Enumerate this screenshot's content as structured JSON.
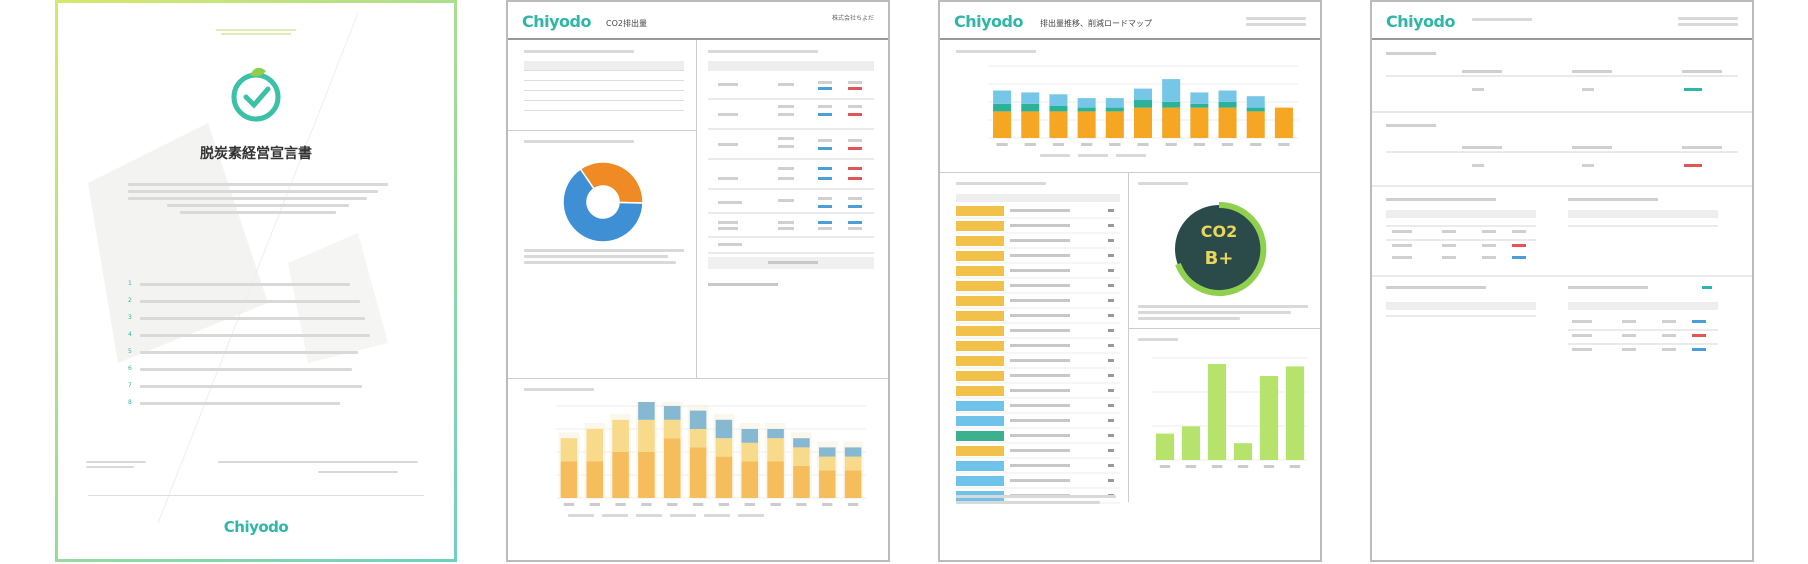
{
  "cover": {
    "tagline_1": "",
    "tagline_2": "",
    "title": "脱炭素経営宣言書",
    "brand": "Chiyodo"
  },
  "report1": {
    "logo": "Chiyodo",
    "title": "CO2排出量",
    "company": "株式会社ちよだ",
    "period": ""
  },
  "report2": {
    "logo": "Chiyodo",
    "title": "排出量推移、削減ロードマップ",
    "company": "",
    "rank": {
      "top": "CO2",
      "bottom": "B+"
    }
  },
  "report3": {
    "logo": "Chiyodo",
    "title": ""
  },
  "colors": {
    "accent": "#2eb7a6",
    "orange": "#f5a623",
    "blue": "#4a9fd8",
    "teal": "#2bb39a",
    "lightblue": "#76c6e8",
    "green": "#b6e36b",
    "dark": "#2b4a4a"
  },
  "chart_data": [
    {
      "type": "pie",
      "values": [
        35,
        65
      ],
      "colors": [
        "#f08a24",
        "#3f8fd4"
      ]
    },
    {
      "type": "bar",
      "stacked": true,
      "values": [
        [
          16,
          10,
          0
        ],
        [
          16,
          14,
          0
        ],
        [
          20,
          14,
          0
        ],
        [
          20,
          14,
          8
        ],
        [
          26,
          8,
          6
        ],
        [
          22,
          8,
          8
        ],
        [
          18,
          8,
          8
        ],
        [
          16,
          8,
          6
        ],
        [
          16,
          10,
          4
        ],
        [
          14,
          8,
          4
        ],
        [
          12,
          6,
          4
        ],
        [
          12,
          6,
          4
        ]
      ]
    },
    {
      "type": "bar",
      "stacked": true,
      "values": [
        [
          14,
          4,
          7
        ],
        [
          14,
          4,
          6
        ],
        [
          14,
          3,
          6
        ],
        [
          14,
          2,
          5
        ],
        [
          14,
          2,
          5
        ],
        [
          16,
          4,
          6
        ],
        [
          16,
          3,
          12
        ],
        [
          16,
          2,
          6
        ],
        [
          16,
          3,
          6
        ],
        [
          14,
          2,
          6
        ],
        [
          16,
          0,
          0
        ]
      ]
    },
    {
      "type": "bar",
      "values": [
        22,
        28,
        80,
        14,
        70,
        78
      ]
    }
  ]
}
